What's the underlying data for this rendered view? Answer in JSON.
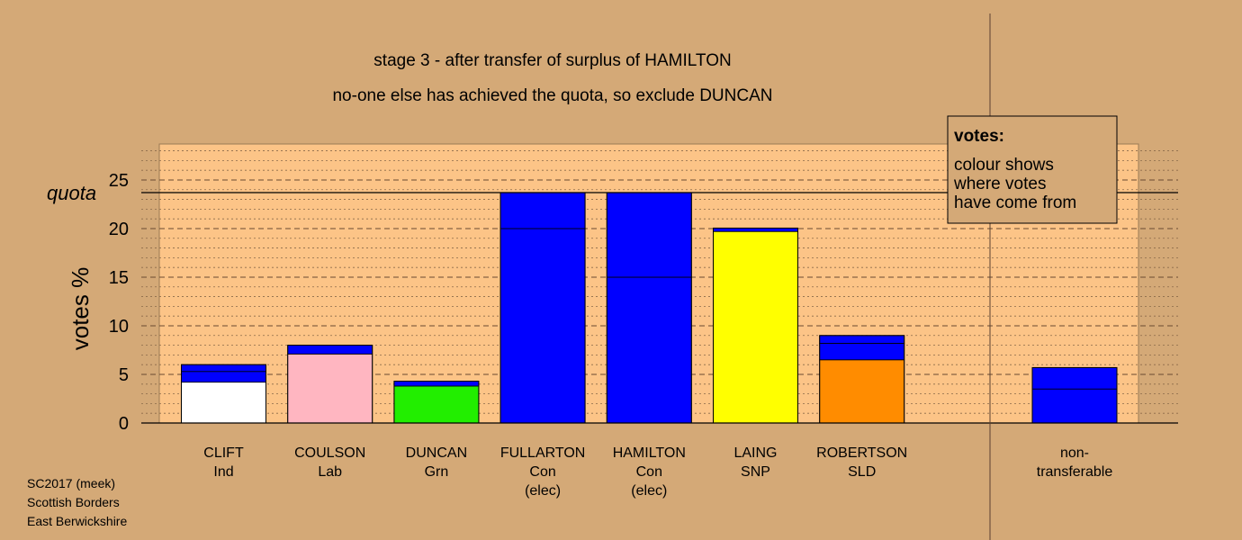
{
  "footer": {
    "line1": "SC2017 (meek)",
    "line2": "Scottish Borders",
    "line3": "East Berwickshire"
  },
  "legend": {
    "title": "votes:",
    "lines": [
      "colour shows",
      "where votes",
      "have come from"
    ]
  },
  "chart_data": {
    "type": "bar",
    "stacked": true,
    "title": "stage 3 - after transfer of surplus of HAMILTON",
    "subtitle": "no-one else has achieved the quota, so exclude DUNCAN",
    "ylabel": "votes %",
    "xlabel": "",
    "ylim": [
      0,
      28.7
    ],
    "yticks": [
      0,
      5,
      10,
      15,
      20,
      25
    ],
    "quota": 23.7,
    "quota_label": "quota",
    "grid": true,
    "legend_position": "top-right",
    "categories": [
      {
        "name": "CLIFT",
        "party": "Ind",
        "note": ""
      },
      {
        "name": "COULSON",
        "party": "Lab",
        "note": ""
      },
      {
        "name": "DUNCAN",
        "party": "Grn",
        "note": ""
      },
      {
        "name": "FULLARTON",
        "party": "Con",
        "note": "(elec)"
      },
      {
        "name": "HAMILTON",
        "party": "Con",
        "note": "(elec)"
      },
      {
        "name": "LAING",
        "party": "SNP",
        "note": ""
      },
      {
        "name": "ROBERTSON",
        "party": "SLD",
        "note": ""
      }
    ],
    "segments": [
      [
        {
          "value": 4.2,
          "color": "#ffffff"
        },
        {
          "value": 1.1,
          "color": "#0000ff"
        },
        {
          "value": 0.7,
          "color": "#0000ff"
        }
      ],
      [
        {
          "value": 7.1,
          "color": "#ffb6c1"
        },
        {
          "value": 0.9,
          "color": "#0000ff"
        }
      ],
      [
        {
          "value": 3.8,
          "color": "#22ee00"
        },
        {
          "value": 0.5,
          "color": "#0000ff"
        }
      ],
      [
        {
          "value": 20.0,
          "color": "#0000ff"
        },
        {
          "value": 3.7,
          "color": "#0000ff"
        }
      ],
      [
        {
          "value": 15.0,
          "color": "#0000ff"
        },
        {
          "value": 8.7,
          "color": "#0000ff"
        }
      ],
      [
        {
          "value": 19.7,
          "color": "#ffff00"
        },
        {
          "value": 0.35,
          "color": "#0000ff"
        }
      ],
      [
        {
          "value": 6.5,
          "color": "#ff8c00"
        },
        {
          "value": 1.7,
          "color": "#0000ff"
        },
        {
          "value": 0.8,
          "color": "#0000ff"
        }
      ]
    ],
    "nontransferable": {
      "label_lines": [
        "non-",
        "transferable"
      ],
      "segments": [
        {
          "value": 3.5,
          "color": "#0000ff"
        },
        {
          "value": 2.2,
          "color": "#0000ff"
        }
      ]
    }
  }
}
